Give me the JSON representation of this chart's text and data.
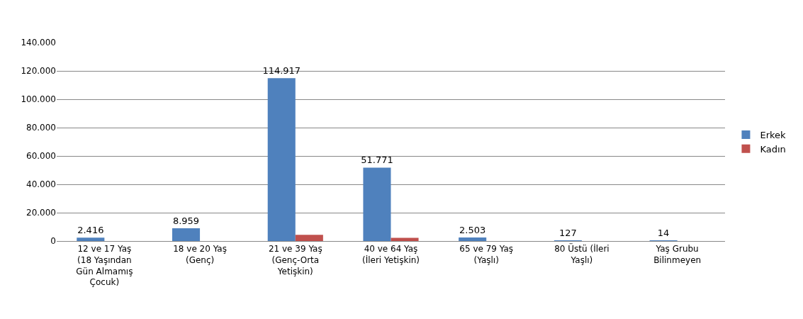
{
  "chart_data": {
    "type": "bar",
    "categories": [
      "12 ve 17 Yaş\n(18 Yaşından\nGün Almamış\nÇocuk)",
      "18 ve 20 Yaş\n(Genç)",
      "21 ve 39 Yaş\n(Genç-Orta\nYetişkin)",
      "40 ve 64 Yaş\n(İleri Yetişkin)",
      "65 ve 79 Yaş\n(Yaşlı)",
      "80 Üstü (İleri\nYaşlı)",
      "Yaş Grubu\nBilinmeyen"
    ],
    "series": [
      {
        "name": "Erkek",
        "color": "#4f81bd",
        "values": [
          2416,
          8959,
          114917,
          51771,
          2503,
          127,
          14
        ],
        "value_labels": [
          "2.416",
          "8.959",
          "114.917",
          "51.771",
          "2.503",
          "127",
          "14"
        ]
      },
      {
        "name": "Kadın",
        "color": "#c0504d",
        "values": [
          null,
          null,
          4400,
          2300,
          null,
          null,
          null
        ]
      }
    ],
    "ylim": [
      0,
      140000
    ],
    "yticks": [
      {
        "value": 0,
        "label": "0"
      },
      {
        "value": 20000,
        "label": "20.000"
      },
      {
        "value": 40000,
        "label": "40.000"
      },
      {
        "value": 60000,
        "label": "60.000"
      },
      {
        "value": 80000,
        "label": "80.000"
      },
      {
        "value": 100000,
        "label": "100.000"
      },
      {
        "value": 120000,
        "label": "120.000"
      },
      {
        "value": 140000,
        "label": "140.000"
      }
    ],
    "grid": "y",
    "legend": "right"
  }
}
